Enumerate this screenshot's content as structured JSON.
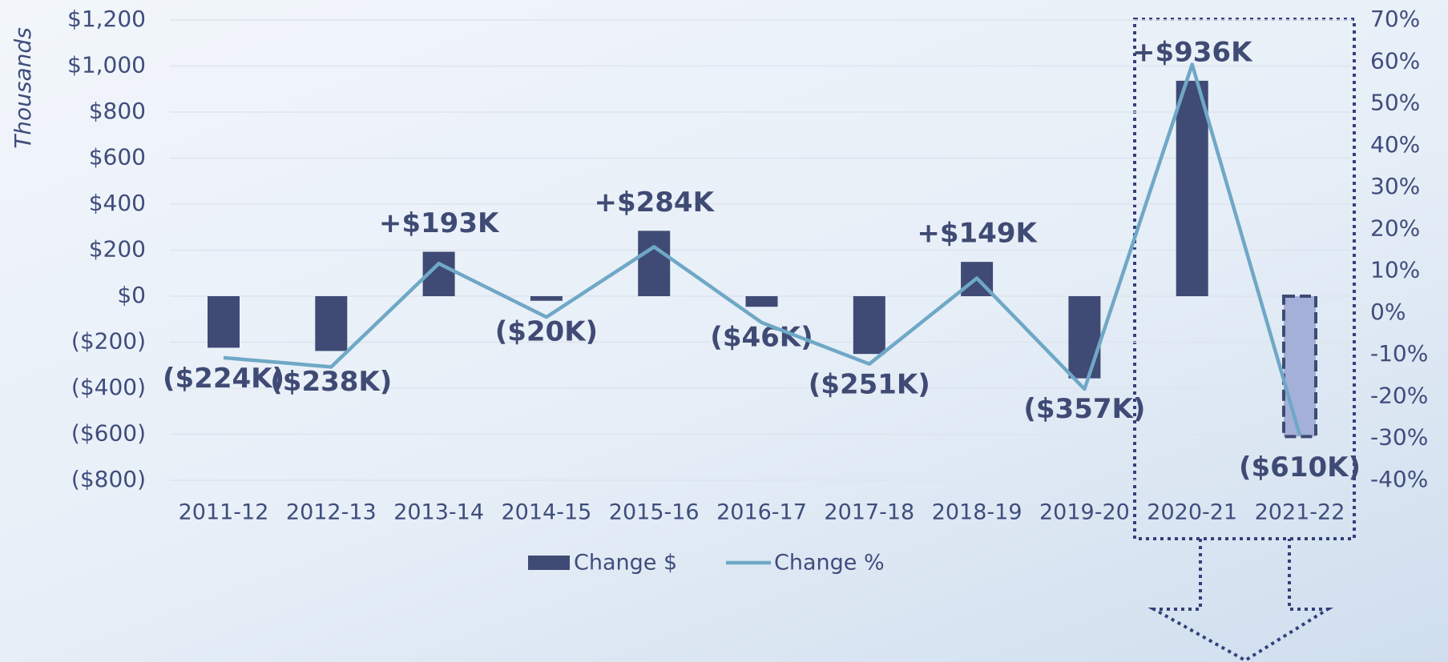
{
  "chart_data": {
    "type": "bar_line",
    "y_axis_label": "Thousands",
    "categories": [
      "2011-12",
      "2012-13",
      "2013-14",
      "2014-15",
      "2015-16",
      "2016-17",
      "2017-18",
      "2018-19",
      "2019-20",
      "2020-21",
      "2021-22"
    ],
    "series": [
      {
        "name": "Change $",
        "type": "bar",
        "color": "#3f4b74",
        "colors": [
          "#3f4b74",
          "#3f4b74",
          "#3f4b74",
          "#3f4b74",
          "#3f4b74",
          "#3f4b74",
          "#3f4b74",
          "#3f4b74",
          "#3f4b74",
          "#3f4b74",
          "#a4b0d8"
        ],
        "values": [
          -224,
          -238,
          193,
          -20,
          284,
          -46,
          -251,
          149,
          -357,
          936,
          -610
        ],
        "value_labels": [
          "($224K)",
          "($238K)",
          "+$193K",
          "($20K)",
          "+$284K",
          "($46K)",
          "($251K)",
          "+$149K",
          "($357K)",
          "+$936K",
          "($610K)"
        ]
      },
      {
        "name": "Change %",
        "type": "line",
        "axis": "y2",
        "color": "#6fa8c6",
        "values": [
          -10.7,
          -12.9,
          11.8,
          -1.0,
          15.8,
          -2.3,
          -12.2,
          8.3,
          -18.2,
          59.4,
          -29.2
        ]
      }
    ],
    "ylim": [
      -800,
      1200
    ],
    "yticks": [
      {
        "value": -800,
        "label": "($800)"
      },
      {
        "value": -600,
        "label": "($600)"
      },
      {
        "value": -400,
        "label": "($400)"
      },
      {
        "value": -200,
        "label": "($200)"
      },
      {
        "value": 0,
        "label": "$0"
      },
      {
        "value": 200,
        "label": "$200"
      },
      {
        "value": 400,
        "label": "$400"
      },
      {
        "value": 600,
        "label": "$600"
      },
      {
        "value": 800,
        "label": "$800"
      },
      {
        "value": 1000,
        "label": "$1,000"
      },
      {
        "value": 1200,
        "label": "$1,200"
      }
    ],
    "y2lim": [
      -40,
      70
    ],
    "y2ticks": [
      {
        "value": -40,
        "label": "-40%"
      },
      {
        "value": -30,
        "label": "-30%"
      },
      {
        "value": -20,
        "label": "-20%"
      },
      {
        "value": -10,
        "label": "-10%"
      },
      {
        "value": 0,
        "label": "0%"
      },
      {
        "value": 10,
        "label": "10%"
      },
      {
        "value": 20,
        "label": "20%"
      },
      {
        "value": 30,
        "label": "30%"
      },
      {
        "value": 40,
        "label": "40%"
      },
      {
        "value": 50,
        "label": "50%"
      },
      {
        "value": 60,
        "label": "60%"
      },
      {
        "value": 70,
        "label": "70%"
      }
    ],
    "grid": true,
    "legend": "bottom"
  }
}
